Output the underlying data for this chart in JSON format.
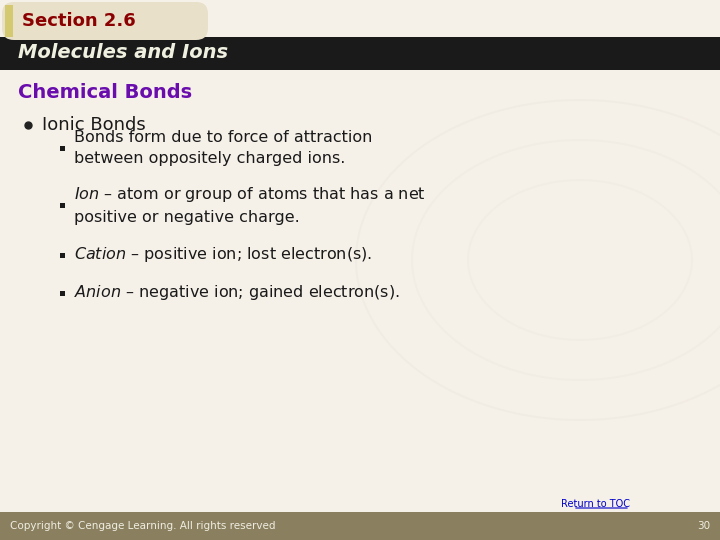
{
  "bg_color": "#f5f0e8",
  "header_tab_color": "#8B0000",
  "header_tab_text": "Section 2.6",
  "header_bar_color": "#1a1a1a",
  "header_bar_text": "Molecules and Ions",
  "section_title": "Chemical Bonds",
  "section_title_color": "#6a0dad",
  "bullet_main": "Ionic Bonds",
  "sub_bullets": [
    [
      "Bonds form due to force of attraction\nbetween oppositely charged ions.",
      false
    ],
    [
      "Ion – atom or group of atoms that has a net\npositive or negative charge.",
      true
    ],
    [
      "Cation – positive ion; lost electron(s).",
      true
    ],
    [
      "Anion – negative ion; gained electron(s).",
      true
    ]
  ],
  "footer_text": "Copyright © Cengage Learning. All rights reserved",
  "footer_page": "30",
  "footer_link": "Return to TOC",
  "footer_bg": "#8a8060",
  "tab_bg": "#e8e0c8",
  "tab_text_color": "#8B0000",
  "header_text_color": "#f0f0e0",
  "watermark_color": "#c8bfaa"
}
